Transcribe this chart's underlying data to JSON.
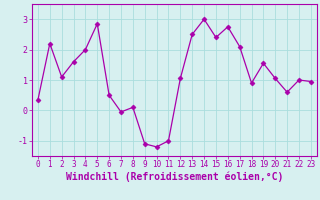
{
  "x": [
    0,
    1,
    2,
    3,
    4,
    5,
    6,
    7,
    8,
    9,
    10,
    11,
    12,
    13,
    14,
    15,
    16,
    17,
    18,
    19,
    20,
    21,
    22,
    23
  ],
  "y": [
    0.35,
    2.2,
    1.1,
    1.6,
    2.0,
    2.85,
    0.5,
    -0.05,
    0.1,
    -1.1,
    -1.2,
    -1.0,
    1.05,
    2.5,
    3.0,
    2.4,
    2.75,
    2.1,
    0.9,
    1.55,
    1.05,
    0.6,
    1.0,
    0.95
  ],
  "line_color": "#aa00aa",
  "marker": "D",
  "marker_size": 2.5,
  "bg_color": "#d7f0f0",
  "grid_color": "#aadddd",
  "xlabel": "Windchill (Refroidissement éolien,°C)",
  "xlim": [
    -0.5,
    23.5
  ],
  "ylim": [
    -1.5,
    3.5
  ],
  "yticks": [
    -1,
    0,
    1,
    2,
    3
  ],
  "xticks": [
    0,
    1,
    2,
    3,
    4,
    5,
    6,
    7,
    8,
    9,
    10,
    11,
    12,
    13,
    14,
    15,
    16,
    17,
    18,
    19,
    20,
    21,
    22,
    23
  ],
  "tick_fontsize": 5.5,
  "label_fontsize": 7.0
}
